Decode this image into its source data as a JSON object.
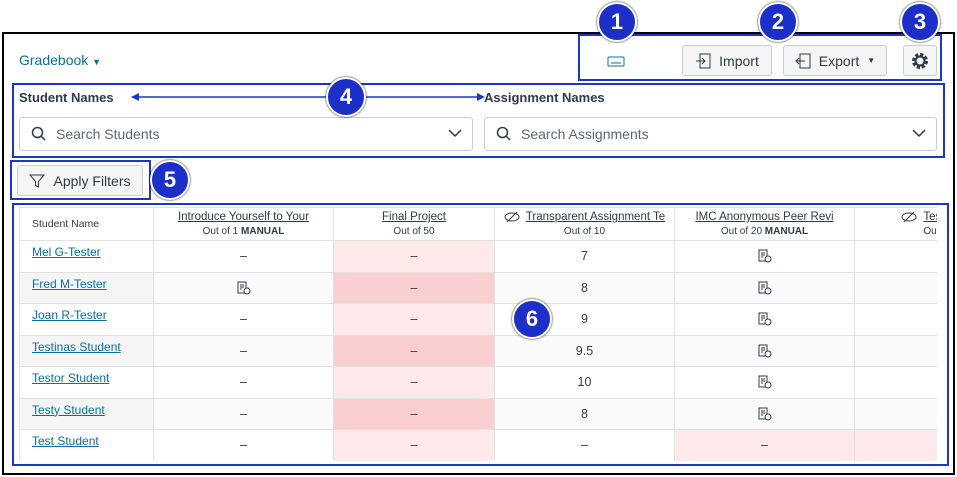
{
  "header": {
    "menu": "Gradebook",
    "import": "Import",
    "export": "Export"
  },
  "callouts": [
    "1",
    "2",
    "3",
    "4",
    "5",
    "6"
  ],
  "filters": {
    "student_label": "Student Names",
    "assignment_label": "Assignment Names",
    "student_placeholder": "Search Students",
    "assignment_placeholder": "Search Assignments",
    "apply": "Apply Filters"
  },
  "table": {
    "student_header": "Student Name",
    "columns": [
      {
        "title": "Introduce Yourself to Your",
        "points": "Out of 1",
        "tag": "MANUAL"
      },
      {
        "title": "Final Project",
        "points": "Out of 50"
      },
      {
        "title": "Transparent Assignment Te",
        "points": "Out of 10"
      },
      {
        "title": "IMC Anonymous Peer Revi",
        "points": "Out of 20",
        "tag": "MANUAL"
      },
      {
        "title": "Testing M",
        "points": "Out of"
      }
    ],
    "rows": [
      {
        "name": "Mel G-Tester",
        "cells": [
          "–",
          "–",
          "7",
          null
        ]
      },
      {
        "name": "Fred M-Tester",
        "cells": [
          null,
          "–",
          "8",
          null
        ]
      },
      {
        "name": "Joan R-Tester",
        "cells": [
          "–",
          "–",
          "9",
          null
        ]
      },
      {
        "name": "Testinas Student",
        "cells": [
          "–",
          "–",
          "9.5",
          null
        ]
      },
      {
        "name": "Testor Student",
        "cells": [
          "–",
          "–",
          "10",
          null
        ]
      },
      {
        "name": "Testy Student",
        "cells": [
          "–",
          "–",
          "8",
          null
        ]
      },
      {
        "name": "Test Student",
        "cells": [
          "–",
          "–",
          "–",
          "–"
        ]
      }
    ]
  }
}
